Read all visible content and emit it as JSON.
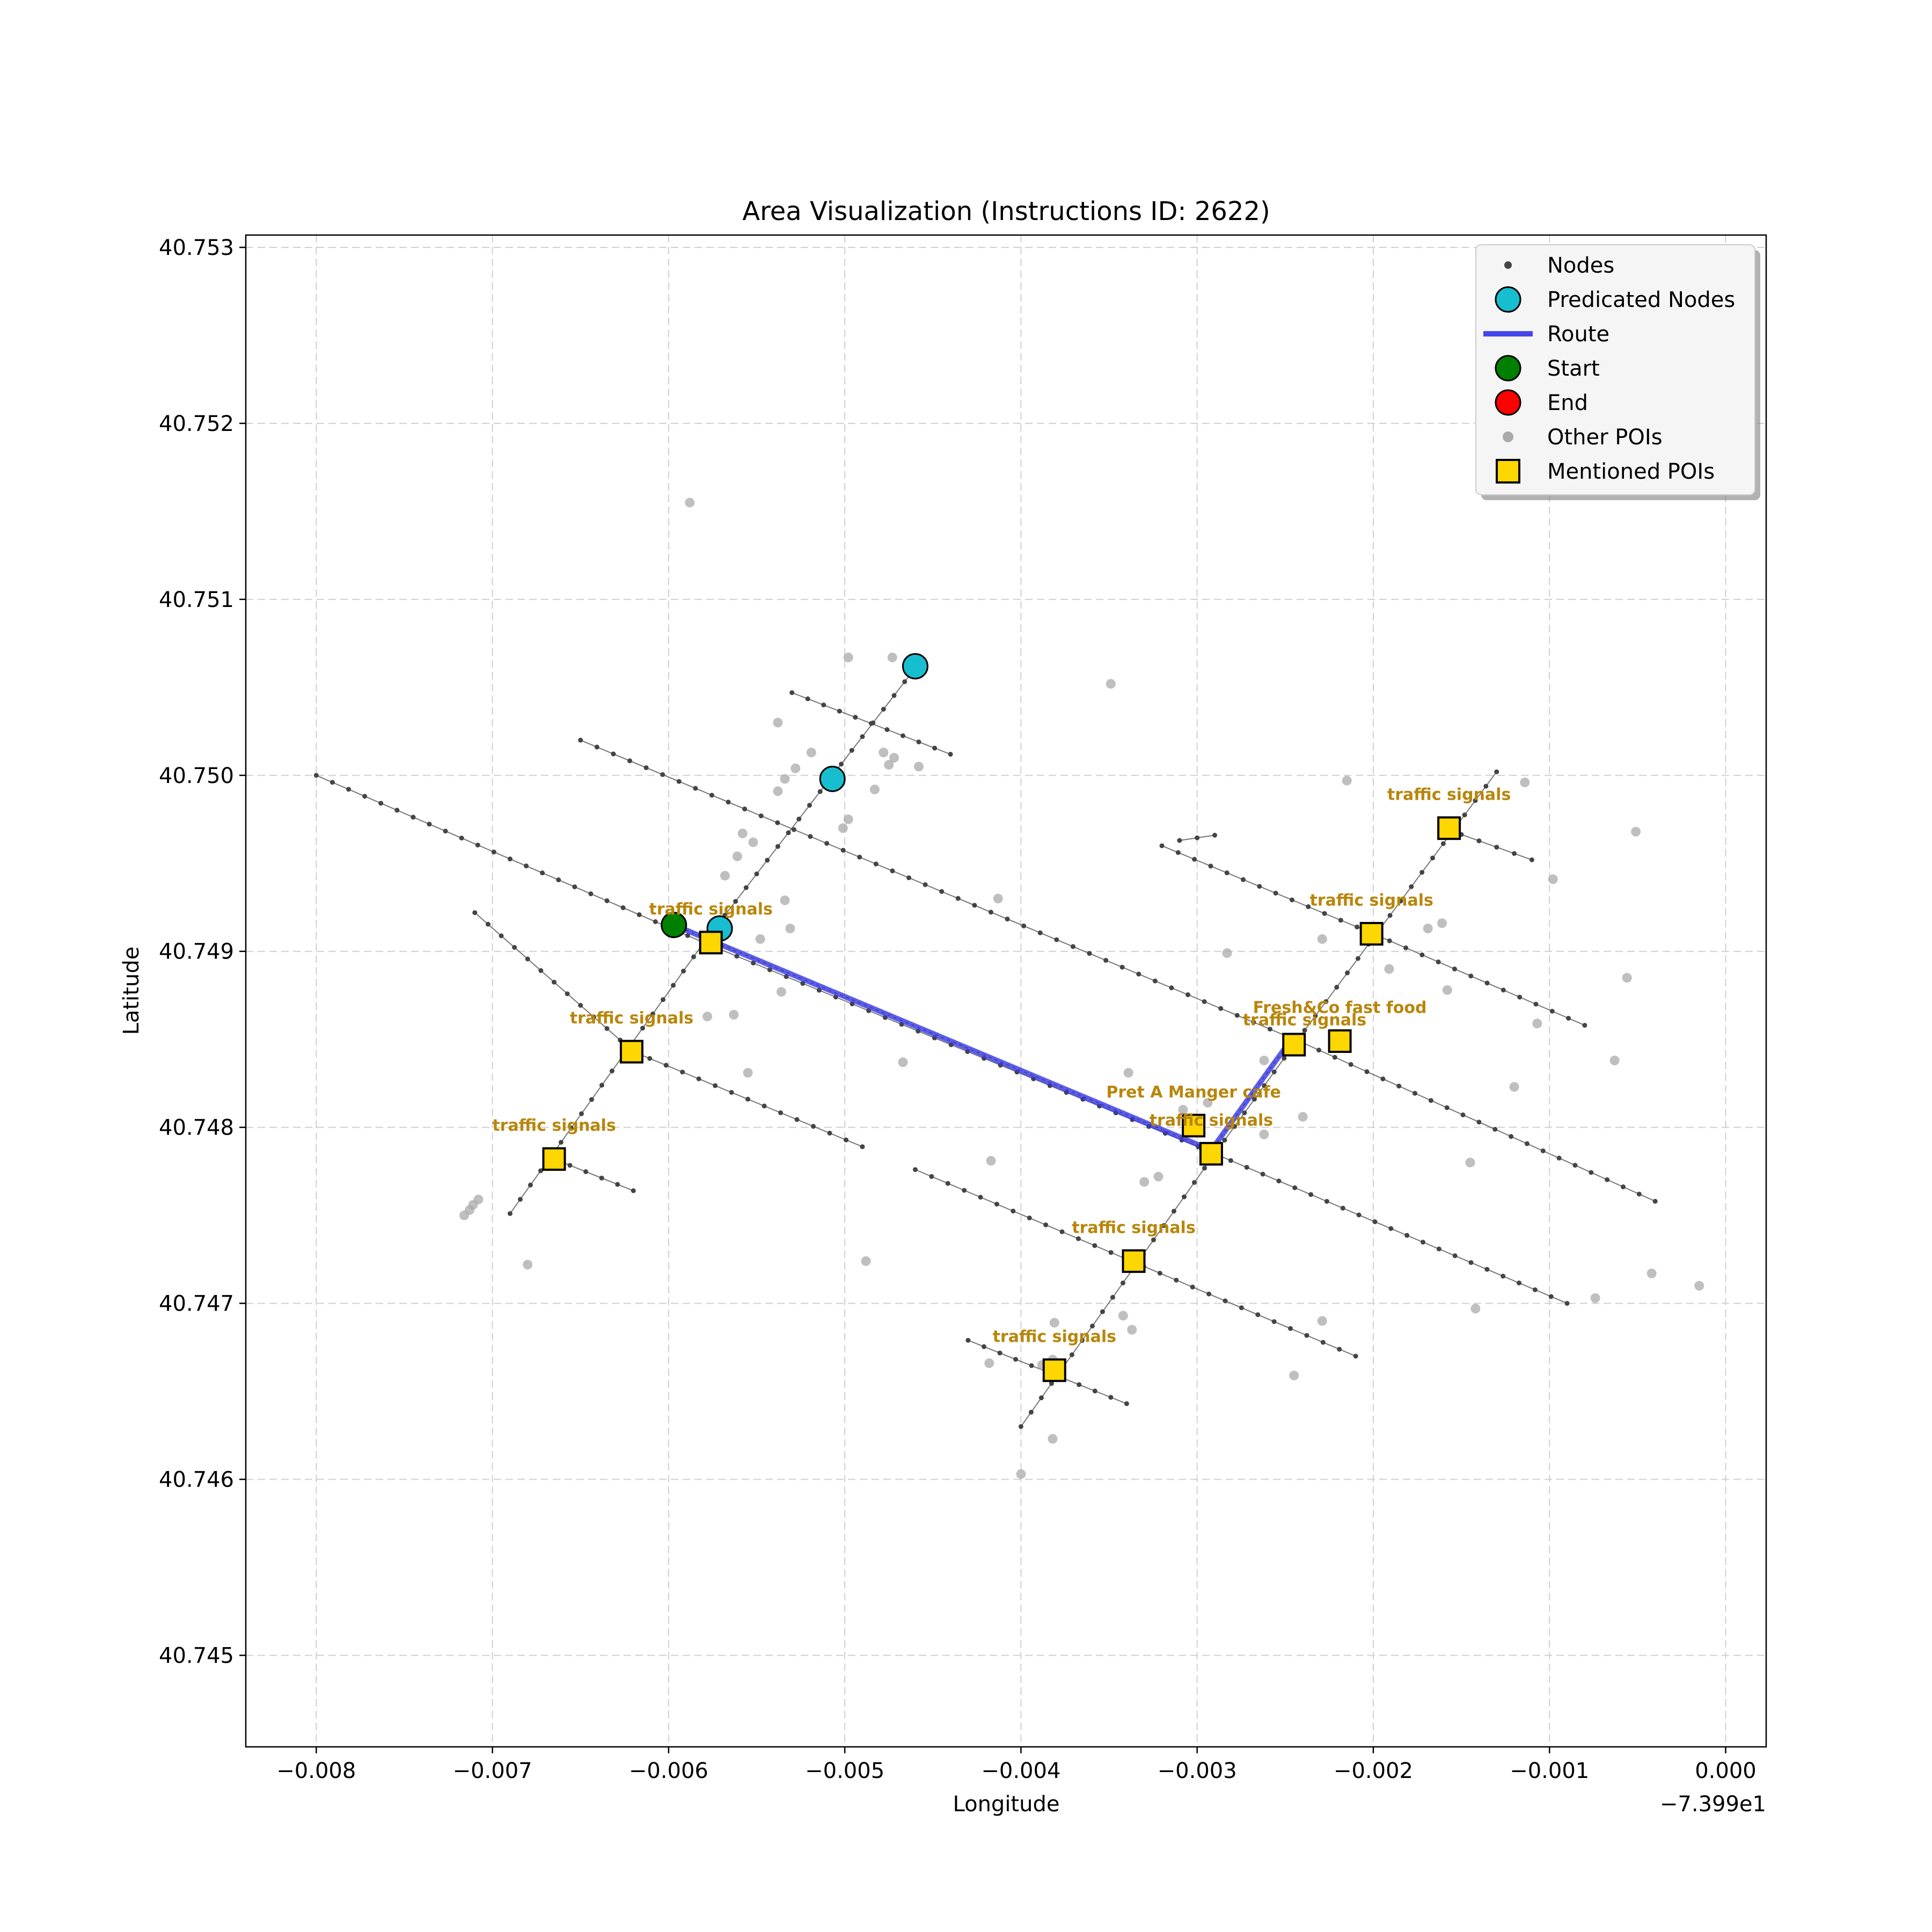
{
  "chart_data": {
    "type": "scatter",
    "title": "Area Visualization (Instructions ID: 2622)",
    "xlabel": "Longitude",
    "ylabel": "Latitude",
    "x_offset_label": "−7.399e1",
    "xlim": [
      -0.0084,
      0.00023
    ],
    "ylim": [
      40.74448,
      40.75307
    ],
    "x_ticks": [
      -0.008,
      -0.007,
      -0.006,
      -0.005,
      -0.004,
      -0.003,
      -0.002,
      -0.001,
      0.0
    ],
    "x_tick_labels": [
      "−0.008",
      "−0.007",
      "−0.006",
      "−0.005",
      "−0.004",
      "−0.003",
      "−0.002",
      "−0.001",
      "0.000"
    ],
    "y_ticks": [
      40.745,
      40.746,
      40.747,
      40.748,
      40.749,
      40.75,
      40.751,
      40.752,
      40.753
    ],
    "y_tick_labels": [
      "40.745",
      "40.746",
      "40.747",
      "40.748",
      "40.749",
      "40.750",
      "40.751",
      "40.752",
      "40.753"
    ],
    "grid": true,
    "legend_position": "top-right",
    "legend": [
      {
        "key": "nodes",
        "label": "Nodes"
      },
      {
        "key": "predicated",
        "label": "Predicated Nodes"
      },
      {
        "key": "route",
        "label": "Route"
      },
      {
        "key": "start",
        "label": "Start"
      },
      {
        "key": "end",
        "label": "End"
      },
      {
        "key": "other_pois",
        "label": "Other POIs"
      },
      {
        "key": "mentioned_pois",
        "label": "Mentioned POIs"
      }
    ],
    "colors": {
      "nodes": "#444444",
      "predicated": "#17becf",
      "route": "#3333ee",
      "start": "#008000",
      "end": "#ff0000",
      "other_pois": "#a9a9a9",
      "mentioned": "#ffd700",
      "poi_label": "#b8860b",
      "grid": "#d0d0d0"
    },
    "streets": [
      [
        [
          -0.008,
          40.75
        ],
        [
          -0.0058,
          40.74905
        ]
      ],
      [
        [
          -0.0058,
          40.74905
        ],
        [
          -0.0029,
          40.74785
        ]
      ],
      [
        [
          -0.0029,
          40.74785
        ],
        [
          -0.0009,
          40.747
        ]
      ],
      [
        [
          -0.0065,
          40.7502
        ],
        [
          -0.0024,
          40.74848
        ]
      ],
      [
        [
          -0.0024,
          40.74848
        ],
        [
          -0.0004,
          40.74758
        ]
      ],
      [
        [
          -0.0032,
          40.7496
        ],
        [
          -0.002,
          40.7491
        ]
      ],
      [
        [
          -0.002,
          40.7491
        ],
        [
          -0.0008,
          40.74858
        ]
      ],
      [
        [
          -0.0053,
          40.75047
        ],
        [
          -0.0044,
          40.75012
        ]
      ],
      [
        [
          -0.0016,
          40.7497
        ],
        [
          -0.0011,
          40.74952
        ]
      ],
      [
        [
          -0.0062,
          40.74843
        ],
        [
          -0.0049,
          40.74789
        ]
      ],
      [
        [
          -0.00665,
          40.74782
        ],
        [
          -0.0062,
          40.74764
        ]
      ],
      [
        [
          -0.0046,
          40.74776
        ],
        [
          -0.0021,
          40.7467
        ]
      ],
      [
        [
          -0.0043,
          40.74679
        ],
        [
          -0.0034,
          40.74643
        ]
      ],
      [
        [
          -0.0069,
          40.74751
        ],
        [
          -0.0058,
          40.74905
        ]
      ],
      [
        [
          -0.0058,
          40.74905
        ],
        [
          -0.0046,
          40.75061
        ]
      ],
      [
        [
          -0.004,
          40.7463
        ],
        [
          -0.0029,
          40.74785
        ]
      ],
      [
        [
          -0.0029,
          40.74785
        ],
        [
          -0.00245,
          40.74847
        ]
      ],
      [
        [
          -0.00245,
          40.74847
        ],
        [
          -0.0013,
          40.75002
        ]
      ],
      [
        [
          -0.0071,
          40.74922
        ],
        [
          -0.0062,
          40.74843
        ]
      ],
      [
        [
          -0.0031,
          40.74963
        ],
        [
          -0.0029,
          40.74966
        ]
      ]
    ],
    "route": [
      [
        -0.00597,
        40.74915
      ],
      [
        -0.00292,
        40.74787
      ],
      [
        -0.00248,
        40.74848
      ]
    ],
    "start": [
      -0.00597,
      40.74915
    ],
    "end": [
      -0.00248,
      40.74848
    ],
    "predicated_nodes": [
      [
        -0.0046,
        40.75062
      ],
      [
        -0.00507,
        40.74998
      ],
      [
        -0.00571,
        40.74913
      ]
    ],
    "other_pois": [
      [
        -0.00588,
        40.75155
      ],
      [
        -0.00498,
        40.75067
      ],
      [
        -0.00473,
        40.75067
      ],
      [
        -0.00538,
        40.7503
      ],
      [
        -0.00519,
        40.75013
      ],
      [
        -0.00528,
        40.75004
      ],
      [
        -0.00534,
        40.74998
      ],
      [
        -0.00538,
        40.74991
      ],
      [
        -0.00478,
        40.75013
      ],
      [
        -0.00472,
        40.7501
      ],
      [
        -0.00475,
        40.75006
      ],
      [
        -0.00458,
        40.75005
      ],
      [
        -0.00483,
        40.74992
      ],
      [
        -0.00498,
        40.74975
      ],
      [
        -0.00501,
        40.7497
      ],
      [
        -0.00558,
        40.74967
      ],
      [
        -0.00552,
        40.74962
      ],
      [
        -0.00561,
        40.74954
      ],
      [
        -0.00568,
        40.74943
      ],
      [
        -0.00534,
        40.74929
      ],
      [
        -0.00531,
        40.74913
      ],
      [
        -0.00548,
        40.74907
      ],
      [
        -0.00536,
        40.74877
      ],
      [
        -0.00563,
        40.74864
      ],
      [
        -0.00578,
        40.74863
      ],
      [
        -0.00555,
        40.74831
      ],
      [
        -0.00413,
        40.7493
      ],
      [
        -0.00467,
        40.74837
      ],
      [
        -0.00417,
        40.74781
      ],
      [
        -0.00488,
        40.74724
      ],
      [
        -0.0068,
        40.74722
      ],
      [
        -0.00708,
        40.74759
      ],
      [
        -0.00711,
        40.74756
      ],
      [
        -0.00713,
        40.74753
      ],
      [
        -0.00716,
        40.7475
      ],
      [
        -0.00349,
        40.75052
      ],
      [
        -0.00215,
        40.74997
      ],
      [
        -0.00114,
        40.74996
      ],
      [
        -0.00283,
        40.74899
      ],
      [
        -0.00229,
        40.74907
      ],
      [
        -0.00169,
        40.74913
      ],
      [
        -0.00161,
        40.74916
      ],
      [
        -0.00051,
        40.74968
      ],
      [
        -0.00098,
        40.74941
      ],
      [
        -0.00191,
        40.7489
      ],
      [
        -0.00158,
        40.74878
      ],
      [
        -0.00056,
        40.74885
      ],
      [
        -0.00107,
        40.74859
      ],
      [
        -0.00063,
        40.74838
      ],
      [
        -0.0012,
        40.74823
      ],
      [
        -0.00262,
        40.74838
      ],
      [
        -0.00339,
        40.74831
      ],
      [
        -0.00308,
        40.7481
      ],
      [
        -0.00294,
        40.74814
      ],
      [
        -0.00298,
        40.74803
      ],
      [
        -0.0024,
        40.74806
      ],
      [
        -0.00262,
        40.74796
      ],
      [
        -0.00145,
        40.7478
      ],
      [
        -0.0033,
        40.74769
      ],
      [
        -0.00322,
        40.74772
      ],
      [
        -0.00042,
        40.74717
      ],
      [
        -0.00015,
        40.7471
      ],
      [
        -0.00074,
        40.74703
      ],
      [
        -0.00142,
        40.74697
      ],
      [
        -0.00229,
        40.7469
      ],
      [
        -0.00342,
        40.74693
      ],
      [
        -0.00337,
        40.74685
      ],
      [
        -0.00381,
        40.74689
      ],
      [
        -0.00382,
        40.74668
      ],
      [
        -0.00388,
        40.74665
      ],
      [
        -0.00381,
        40.74661
      ],
      [
        -0.00418,
        40.74666
      ],
      [
        -0.00245,
        40.74659
      ],
      [
        -0.00382,
        40.74623
      ],
      [
        -0.004,
        40.74603
      ]
    ],
    "mentioned_pois": [
      {
        "x": -0.00576,
        "y": 40.74905,
        "label": "traffic signals",
        "dx": 0.0,
        "dy": 0.00016
      },
      {
        "x": -0.00621,
        "y": 40.74843,
        "label": "traffic signals",
        "dx": 0.0,
        "dy": 0.00016
      },
      {
        "x": -0.00665,
        "y": 40.74782,
        "label": "traffic signals",
        "dx": 0.0,
        "dy": 0.00016
      },
      {
        "x": -0.00157,
        "y": 40.7497,
        "label": "traffic signals",
        "dx": 0.0,
        "dy": 0.00016
      },
      {
        "x": -0.00201,
        "y": 40.7491,
        "label": "traffic signals",
        "dx": 0.0,
        "dy": 0.00016
      },
      {
        "x": -0.00245,
        "y": 40.74847,
        "label": "traffic signals",
        "dx": 6e-05,
        "dy": 0.00011
      },
      {
        "x": -0.00219,
        "y": 40.74849,
        "label": "Fresh&Co fast food",
        "dx": 0.0,
        "dy": 0.00016
      },
      {
        "x": -0.00302,
        "y": 40.74801,
        "label": "Pret A Manger cafe",
        "dx": 0.0,
        "dy": 0.00016
      },
      {
        "x": -0.00292,
        "y": 40.74785,
        "label": "traffic signals",
        "dx": 0.0,
        "dy": 0.00016
      },
      {
        "x": -0.00336,
        "y": 40.74724,
        "label": "traffic signals",
        "dx": 0.0,
        "dy": 0.00016
      },
      {
        "x": -0.00381,
        "y": 40.74662,
        "label": "traffic signals",
        "dx": 0.0,
        "dy": 0.00016
      }
    ]
  }
}
